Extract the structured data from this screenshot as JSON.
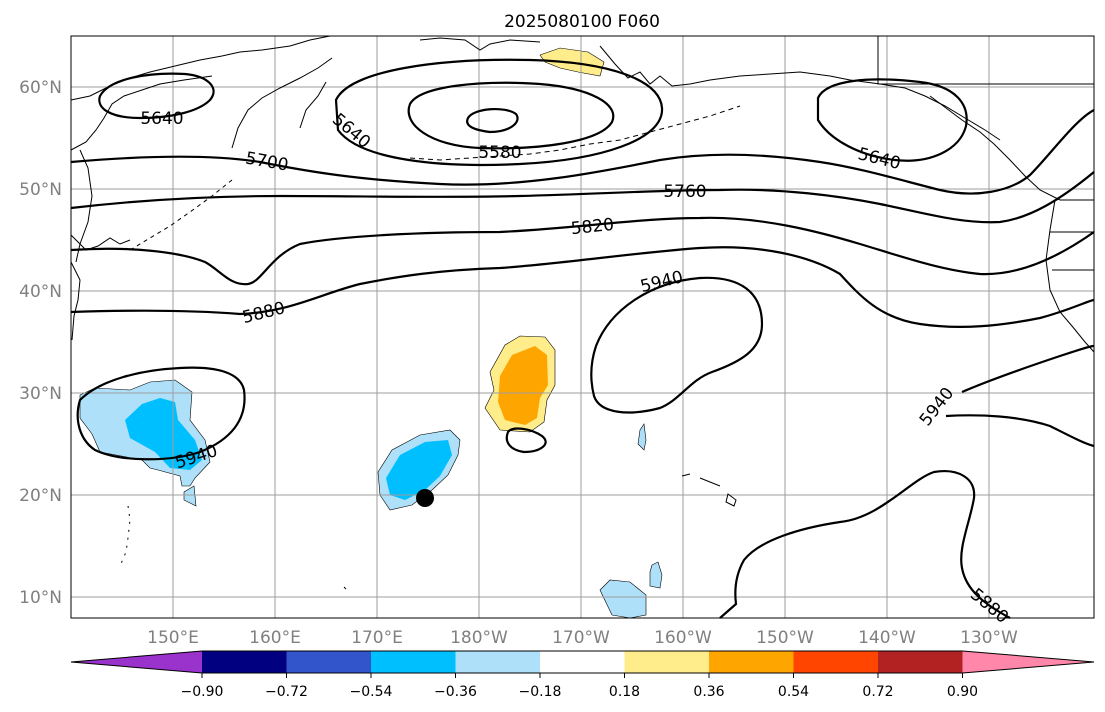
{
  "title": "2025080100 F060",
  "lat_labels": [
    "60°N",
    "50°N",
    "40°N",
    "30°N",
    "20°N",
    "10°N"
  ],
  "lon_labels": [
    "150°E",
    "160°E",
    "170°E",
    "180°W",
    "170°W",
    "160°W",
    "150°W",
    "140°W",
    "130°W"
  ],
  "contour_labels": [
    "5640",
    "5640",
    "5580",
    "5640",
    "5700",
    "5760",
    "5820",
    "5940",
    "5880",
    "5940",
    "5940",
    "5880"
  ],
  "colorbar": {
    "tick_labels": [
      "−0.90",
      "−0.72",
      "−0.54",
      "−0.36",
      "−0.18",
      "0.18",
      "0.36",
      "0.54",
      "0.72",
      "0.90"
    ],
    "colors": [
      "#9933cc",
      "#000080",
      "#3355cc",
      "#00bfff",
      "#aee0fa",
      "#ffffff",
      "#ffec8b",
      "#ffa500",
      "#ff4500",
      "#b22222",
      "#ff88aa"
    ]
  },
  "colors": {
    "light_blue": "#aee0fa",
    "deep_sky_blue": "#00bfff",
    "light_yellow": "#ffec8b",
    "orange": "#ffa500",
    "marker": "#000000"
  }
}
